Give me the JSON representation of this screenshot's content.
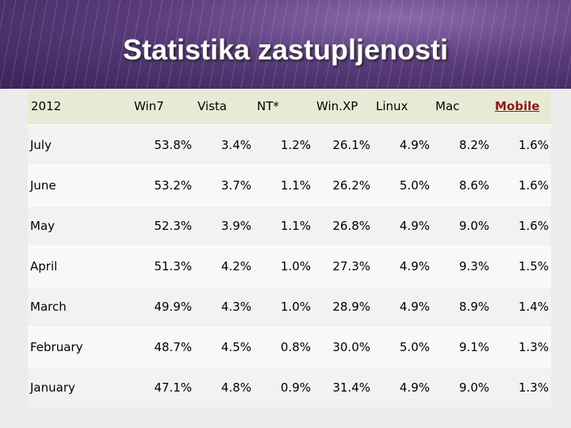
{
  "title": "Statistika zastupljenosti",
  "table": {
    "header": [
      "2012",
      "Win7",
      "Vista",
      "NT*",
      "Win.XP",
      "Linux",
      "Mac",
      "Mobile"
    ],
    "rows": [
      [
        "July",
        "53.8%",
        "3.4%",
        "1.2%",
        "26.1%",
        "4.9%",
        "8.2%",
        "1.6%"
      ],
      [
        "June",
        "53.2%",
        "3.7%",
        "1.1%",
        "26.2%",
        "5.0%",
        "8.6%",
        "1.6%"
      ],
      [
        "May",
        "52.3%",
        "3.9%",
        "1.1%",
        "26.8%",
        "4.9%",
        "9.0%",
        "1.6%"
      ],
      [
        "April",
        "51.3%",
        "4.2%",
        "1.0%",
        "27.3%",
        "4.9%",
        "9.3%",
        "1.5%"
      ],
      [
        "March",
        "49.9%",
        "4.3%",
        "1.0%",
        "28.9%",
        "4.9%",
        "8.9%",
        "1.4%"
      ],
      [
        "February",
        "48.7%",
        "4.5%",
        "0.8%",
        "30.0%",
        "5.0%",
        "9.1%",
        "1.3%"
      ],
      [
        "January",
        "47.1%",
        "4.8%",
        "0.9%",
        "31.4%",
        "4.9%",
        "9.0%",
        "1.3%"
      ]
    ]
  }
}
